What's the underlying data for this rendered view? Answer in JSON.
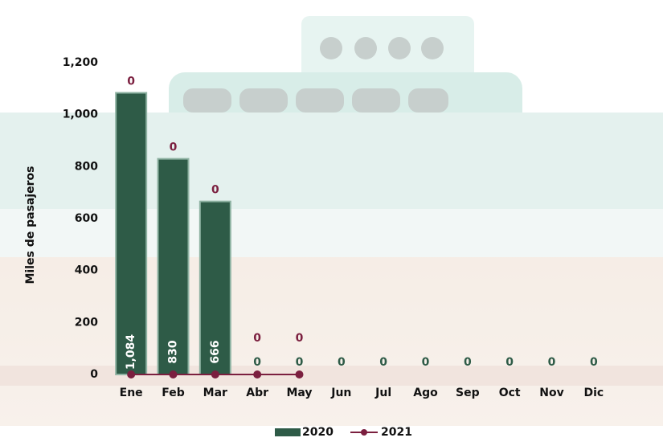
{
  "chart_data": {
    "type": "combo",
    "y_axis_label": "Miles de pasajeros",
    "categories": [
      "Ene",
      "Feb",
      "Mar",
      "Abr",
      "May",
      "Jun",
      "Jul",
      "Ago",
      "Sep",
      "Oct",
      "Nov",
      "Dic"
    ],
    "series": [
      {
        "name": "2020",
        "type": "bar",
        "color": "#2e5b47",
        "values": [
          1084,
          830,
          666,
          0,
          0,
          0,
          0,
          0,
          0,
          0,
          0,
          0
        ],
        "value_labels": [
          "1,084",
          "830",
          "666",
          "0",
          "0",
          "0",
          "0",
          "0",
          "0",
          "0",
          "0",
          "0"
        ]
      },
      {
        "name": "2021",
        "type": "line",
        "color": "#7b1f3f",
        "values": [
          0,
          0,
          0,
          0,
          0,
          null,
          null,
          null,
          null,
          null,
          null,
          null
        ]
      }
    ],
    "ylim": [
      0,
      1200
    ],
    "yticks": [
      0,
      200,
      400,
      600,
      800,
      {
        "value": 1000,
        "label": "1,000"
      },
      {
        "value": 1200,
        "label": "1,200"
      }
    ],
    "legend": "bottom"
  }
}
